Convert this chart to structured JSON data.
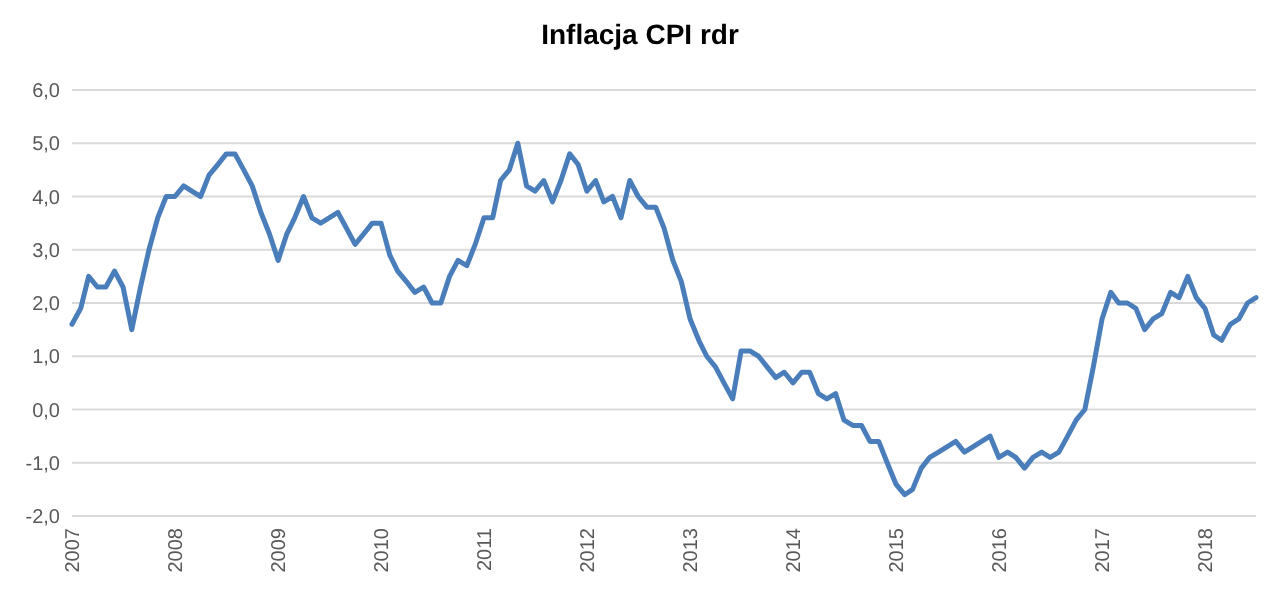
{
  "chart_data": {
    "type": "line",
    "title": "Inflacja CPI rdr",
    "x": [
      "2007-01",
      "2007-02",
      "2007-03",
      "2007-04",
      "2007-05",
      "2007-06",
      "2007-07",
      "2007-08",
      "2007-09",
      "2007-10",
      "2007-11",
      "2007-12",
      "2008-01",
      "2008-02",
      "2008-03",
      "2008-04",
      "2008-05",
      "2008-06",
      "2008-07",
      "2008-08",
      "2008-09",
      "2008-10",
      "2008-11",
      "2008-12",
      "2009-01",
      "2009-02",
      "2009-03",
      "2009-04",
      "2009-05",
      "2009-06",
      "2009-07",
      "2009-08",
      "2009-09",
      "2009-10",
      "2009-11",
      "2009-12",
      "2010-01",
      "2010-02",
      "2010-03",
      "2010-04",
      "2010-05",
      "2010-06",
      "2010-07",
      "2010-08",
      "2010-09",
      "2010-10",
      "2010-11",
      "2010-12",
      "2011-01",
      "2011-02",
      "2011-03",
      "2011-04",
      "2011-05",
      "2011-06",
      "2011-07",
      "2011-08",
      "2011-09",
      "2011-10",
      "2011-11",
      "2011-12",
      "2012-01",
      "2012-02",
      "2012-03",
      "2012-04",
      "2012-05",
      "2012-06",
      "2012-07",
      "2012-08",
      "2012-09",
      "2012-10",
      "2012-11",
      "2012-12",
      "2013-01",
      "2013-02",
      "2013-03",
      "2013-04",
      "2013-05",
      "2013-06",
      "2013-07",
      "2013-08",
      "2013-09",
      "2013-10",
      "2013-11",
      "2013-12",
      "2014-01",
      "2014-02",
      "2014-03",
      "2014-04",
      "2014-05",
      "2014-06",
      "2014-07",
      "2014-08",
      "2014-09",
      "2014-10",
      "2014-11",
      "2014-12",
      "2015-01",
      "2015-02",
      "2015-03",
      "2015-04",
      "2015-05",
      "2015-06",
      "2015-07",
      "2015-08",
      "2015-09",
      "2015-10",
      "2015-11",
      "2015-12",
      "2016-01",
      "2016-02",
      "2016-03",
      "2016-04",
      "2016-05",
      "2016-06",
      "2016-07",
      "2016-08",
      "2016-09",
      "2016-10",
      "2016-11",
      "2016-12",
      "2017-01",
      "2017-02",
      "2017-03",
      "2017-04",
      "2017-05",
      "2017-06",
      "2017-07",
      "2017-08",
      "2017-09",
      "2017-10",
      "2017-11",
      "2017-12",
      "2018-01",
      "2018-02",
      "2018-03",
      "2018-04",
      "2018-05",
      "2018-06",
      "2018-07"
    ],
    "series": [
      {
        "color": "#4a7ebb",
        "values": [
          1.6,
          1.9,
          2.5,
          2.3,
          2.3,
          2.6,
          2.3,
          1.5,
          2.3,
          3.0,
          3.6,
          4.0,
          4.0,
          4.2,
          4.1,
          4.0,
          4.4,
          4.6,
          4.8,
          4.8,
          4.5,
          4.2,
          3.7,
          3.3,
          2.8,
          3.3,
          3.6,
          4.0,
          3.6,
          3.5,
          3.6,
          3.7,
          3.4,
          3.1,
          3.3,
          3.5,
          3.5,
          2.9,
          2.6,
          2.4,
          2.2,
          2.3,
          2.0,
          2.0,
          2.5,
          2.8,
          2.7,
          3.1,
          3.6,
          3.6,
          4.3,
          4.5,
          5.0,
          4.2,
          4.1,
          4.3,
          3.9,
          4.3,
          4.8,
          4.6,
          4.1,
          4.3,
          3.9,
          4.0,
          3.6,
          4.3,
          4.0,
          3.8,
          3.8,
          3.4,
          2.8,
          2.4,
          1.7,
          1.3,
          1.0,
          0.8,
          0.5,
          0.2,
          1.1,
          1.1,
          1.0,
          0.8,
          0.6,
          0.7,
          0.5,
          0.7,
          0.7,
          0.3,
          0.2,
          0.3,
          -0.2,
          -0.3,
          -0.3,
          -0.6,
          -0.6,
          -1.0,
          -1.4,
          -1.6,
          -1.5,
          -1.1,
          -0.9,
          -0.8,
          -0.7,
          -0.6,
          -0.8,
          -0.7,
          -0.6,
          -0.5,
          -0.9,
          -0.8,
          -0.9,
          -1.1,
          -0.9,
          -0.8,
          -0.9,
          -0.8,
          -0.5,
          -0.2,
          0.0,
          0.8,
          1.7,
          2.2,
          2.0,
          2.0,
          1.9,
          1.5,
          1.7,
          1.8,
          2.2,
          2.1,
          2.5,
          2.1,
          1.9,
          1.4,
          1.3,
          1.6,
          1.7,
          2.0,
          2.1
        ]
      }
    ],
    "xlim": [
      "2007-01",
      "2018-07"
    ],
    "xticks": [
      "2007",
      "2008",
      "2009",
      "2010",
      "2011",
      "2012",
      "2013",
      "2014",
      "2015",
      "2016",
      "2017",
      "2018"
    ],
    "ylim": [
      -2,
      6
    ],
    "yticks": [
      {
        "value": -2,
        "label": "-2,0"
      },
      {
        "value": -1,
        "label": "-1,0"
      },
      {
        "value": 0,
        "label": "0,0"
      },
      {
        "value": 1,
        "label": "1,0"
      },
      {
        "value": 2,
        "label": "2,0"
      },
      {
        "value": 3,
        "label": "3,0"
      },
      {
        "value": 4,
        "label": "4,0"
      },
      {
        "value": 5,
        "label": "5,0"
      },
      {
        "value": 6,
        "label": "6,0"
      }
    ],
    "grid": "y",
    "marker": "none",
    "line_style": "solid"
  }
}
